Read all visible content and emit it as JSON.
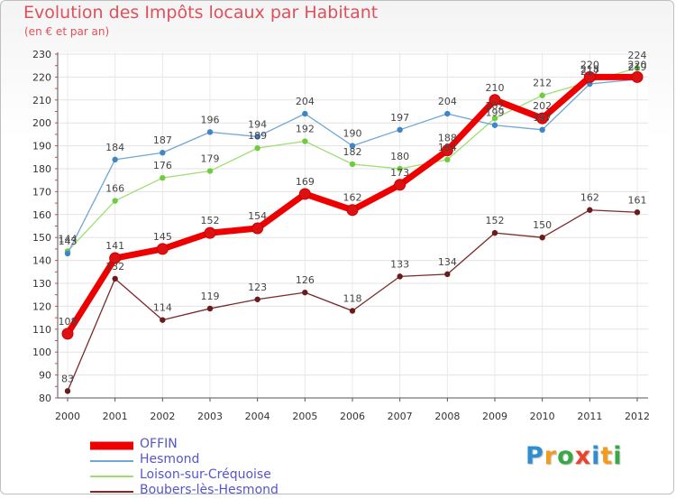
{
  "header": {
    "title": "Evolution des Impôts locaux par Habitant",
    "subtitle": "(en € et par an)"
  },
  "logo": {
    "text": "Proxiti",
    "colors": [
      "#2e8fd0",
      "#f29c1f",
      "#39a845",
      "#e8442b",
      "#2e8fd0",
      "#f29c1f",
      "#39a845"
    ]
  },
  "chart_data": {
    "type": "line",
    "title": "Evolution des Impôts locaux par Habitant",
    "subtitle": "(en € et par an)",
    "xlabel": "",
    "ylabel": "",
    "ylim": [
      80,
      230
    ],
    "ytick_step": 10,
    "grid": true,
    "legend_position": "bottom-left",
    "categories": [
      "2000",
      "2001",
      "2002",
      "2003",
      "2004",
      "2005",
      "2006",
      "2007",
      "2008",
      "2009",
      "2010",
      "2011",
      "2012"
    ],
    "series": [
      {
        "name": "OFFIN",
        "color": "#ee0000",
        "marker": "#dd1111",
        "width": 7,
        "values": [
          108,
          141,
          145,
          152,
          154,
          169,
          162,
          173,
          188,
          210,
          202,
          220,
          220
        ]
      },
      {
        "name": "Hesmond",
        "color": "#6ea6d8",
        "marker": "#3f86c6",
        "width": 1.3,
        "values": [
          143,
          184,
          187,
          196,
          194,
          204,
          190,
          197,
          204,
          199,
          197,
          217,
          219
        ]
      },
      {
        "name": "Loison-sur-Créquoise",
        "color": "#9ede73",
        "marker": "#6fcc3f",
        "width": 1.3,
        "values": [
          144,
          166,
          176,
          179,
          189,
          192,
          182,
          180,
          184,
          202,
          212,
          218,
          224
        ]
      },
      {
        "name": "Boubers-lès-Hesmond",
        "color": "#7a2a2a",
        "marker": "#6a1c1c",
        "width": 1.3,
        "values": [
          83,
          132,
          114,
          119,
          123,
          126,
          118,
          133,
          134,
          152,
          150,
          162,
          161
        ]
      }
    ]
  }
}
